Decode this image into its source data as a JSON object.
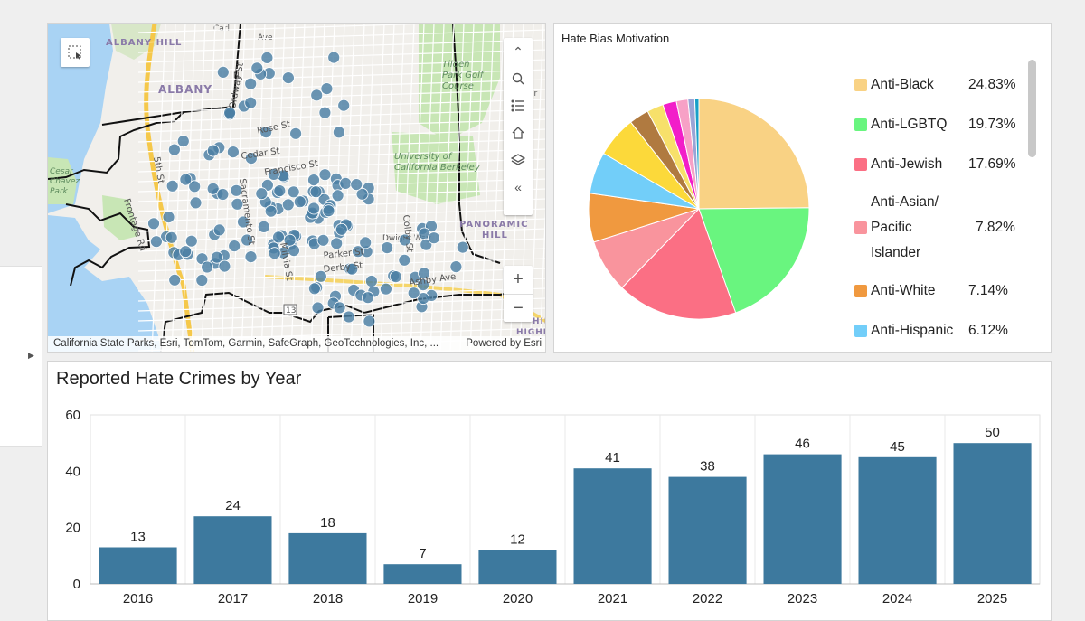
{
  "map": {
    "places": {
      "albany_hill": "ALBANY HILL",
      "albany": "ALBANY",
      "tilden": "Tilden Park Golf Course",
      "university": "University of California Berkeley",
      "panoramic": "PANORAMIC HILL",
      "cesar": "Cesar Chavez Park",
      "hill_cut": "HILL",
      "highl_cut": "HIGHL"
    },
    "streets": [
      "Rose St",
      "Cedar St",
      "Francisco St",
      "Dwight Way",
      "Parker St",
      "Derby St",
      "Ashby Ave",
      "Ordway St",
      "5th St",
      "Frontage Rd",
      "Milvia St",
      "Sacramento St",
      "Colby St",
      "Ave",
      "Ave",
      "Ave",
      "Carl",
      "N",
      "Mo",
      "Co",
      "13",
      "Ave",
      "ee",
      "Ave",
      "Ave",
      "Ave",
      "or"
    ],
    "attribution": "California State Parks, Esri, TomTom, Garmin, SafeGraph, GeoTechnologies, Inc, ...",
    "powered_by": "Powered by Esri",
    "tools": [
      "collapse-up",
      "search",
      "legend",
      "home",
      "layers",
      "collapse-left"
    ],
    "zoom_in": "+",
    "zoom_out": "−",
    "colors": {
      "water": "#a9d3f4",
      "land": "#f1efeb",
      "park": "#c8e6b5",
      "point": "#4a7fa3",
      "boundary": "#111111"
    }
  },
  "pie": {
    "title": "Hate Bias Motivation",
    "slices": [
      {
        "label": "Anti-Black",
        "pct_label": "24.83%",
        "value": 24.83,
        "color": "#f9d284"
      },
      {
        "label": "Anti-LGBTQ",
        "pct_label": "19.73%",
        "value": 19.73,
        "color": "#69f57f"
      },
      {
        "label": "Anti-Jewish",
        "pct_label": "17.69%",
        "value": 17.69,
        "color": "#fb6f84"
      },
      {
        "label": "Anti-Asian/ Pacific Islander",
        "label_lines": [
          "Anti-Asian/",
          "Pacific",
          "Islander"
        ],
        "pct_label": "7.82%",
        "value": 7.82,
        "color": "#f9949d"
      },
      {
        "label": "Anti-White",
        "pct_label": "7.14%",
        "value": 7.14,
        "color": "#f0993f"
      },
      {
        "label": "Anti-Hispanic",
        "pct_label": "6.12%",
        "value": 6.12,
        "color": "#72cef9"
      },
      {
        "label": "",
        "pct_label": "",
        "value": 6.0,
        "color": "#fcd93a"
      },
      {
        "label": "",
        "pct_label": "",
        "value": 2.9,
        "color": "#b07a40"
      },
      {
        "label": "",
        "pct_label": "",
        "value": 2.4,
        "color": "#f7e06a"
      },
      {
        "label": "",
        "pct_label": "",
        "value": 2.0,
        "color": "#f21ec9"
      },
      {
        "label": "",
        "pct_label": "",
        "value": 1.7,
        "color": "#f7a1c6"
      },
      {
        "label": "",
        "pct_label": "",
        "value": 1.0,
        "color": "#9aa4d6"
      },
      {
        "label": "",
        "pct_label": "",
        "value": 0.6,
        "color": "#18a0c8"
      }
    ]
  },
  "chart_data": {
    "type": "bar",
    "title": "Reported Hate Crimes by Year",
    "categories": [
      "2016",
      "2017",
      "2018",
      "2019",
      "2020",
      "2021",
      "2022",
      "2023",
      "2024",
      "2025"
    ],
    "values": [
      13,
      24,
      18,
      7,
      12,
      41,
      38,
      46,
      45,
      50
    ],
    "yticks": [
      0,
      20,
      40,
      60
    ],
    "ylim": [
      0,
      60
    ],
    "xlabel": "",
    "ylabel": "",
    "bar_color": "#3d799e",
    "grid": true
  }
}
